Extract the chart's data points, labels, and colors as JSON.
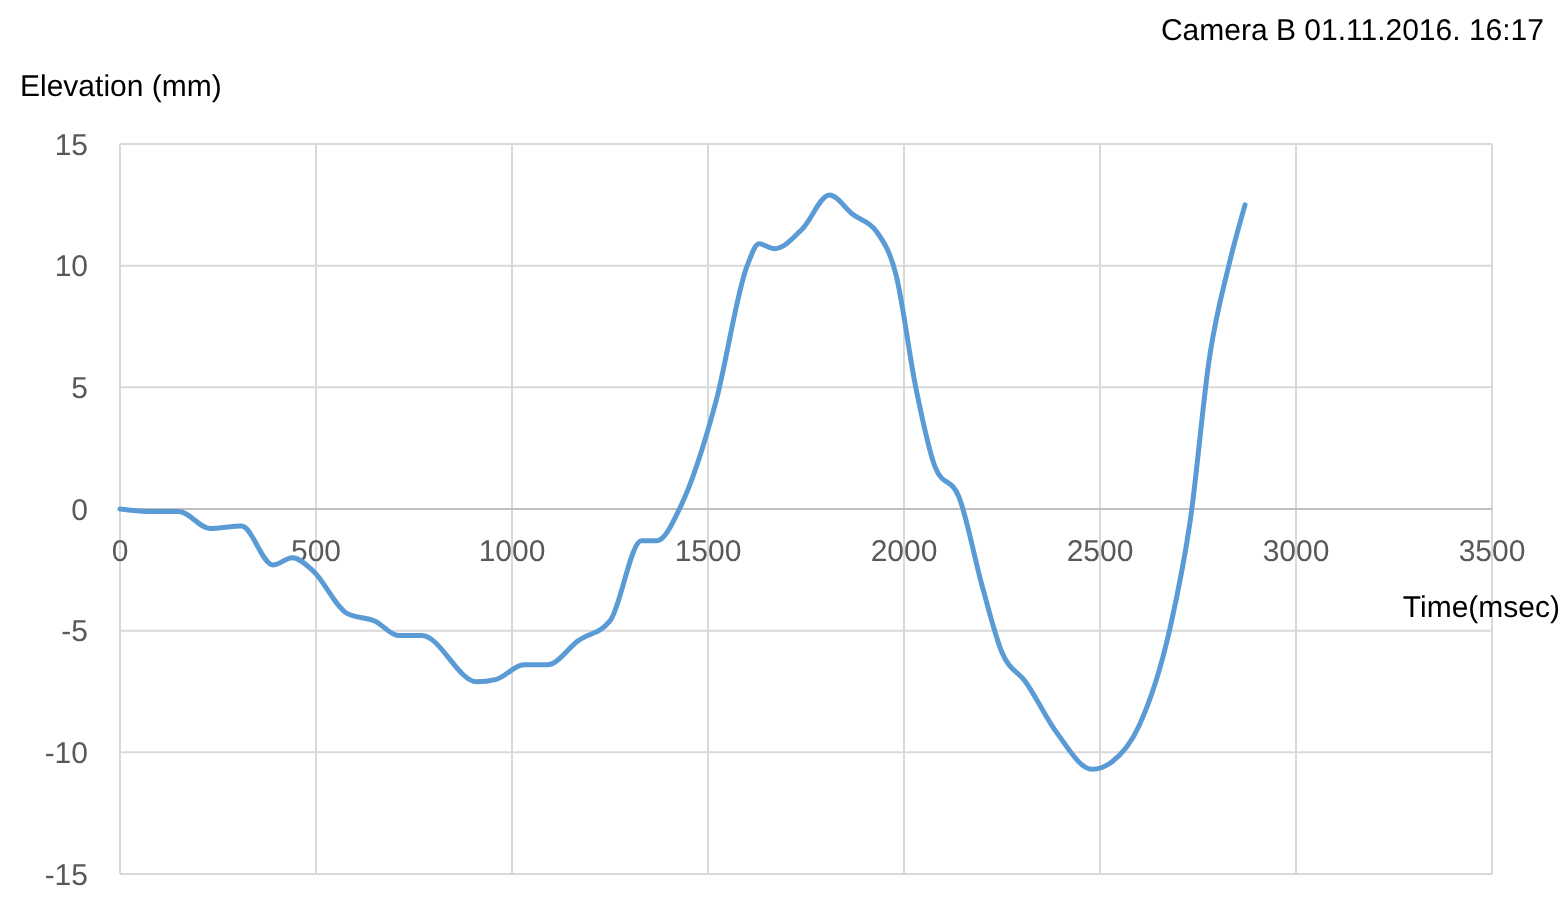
{
  "chart_data": {
    "type": "line",
    "title": "Camera B 01.11.2016. 16:17",
    "xlabel": "Time(msec)",
    "ylabel": "Elevation (mm)",
    "xlim": [
      0,
      3500
    ],
    "xticks": [
      0,
      500,
      1000,
      1500,
      2000,
      2500,
      3000,
      3500
    ],
    "ylim": [
      -15,
      15
    ],
    "yticks": [
      -15,
      -10,
      -5,
      0,
      5,
      10,
      15
    ],
    "grid": true,
    "marker": "none",
    "line_style": "solid",
    "series": [
      {
        "color": "#5b9bd5",
        "x": [
          0,
          70,
          150,
          230,
          310,
          390,
          440,
          490,
          580,
          650,
          710,
          770,
          910,
          960,
          1030,
          1090,
          1170,
          1250,
          1330,
          1370,
          1430,
          1520,
          1600,
          1630,
          1670,
          1740,
          1810,
          1870,
          1930,
          1980,
          2030,
          2080,
          2140,
          2200,
          2250,
          2310,
          2390,
          2480,
          2530,
          2600,
          2680,
          2730,
          2780,
          2830,
          2870
        ],
        "values": [
          0,
          -0.1,
          -0.1,
          -0.8,
          -0.7,
          -2.3,
          -2,
          -2.5,
          -4.3,
          -4.6,
          -5.2,
          -5.2,
          -7.1,
          -7,
          -6.4,
          -6.4,
          -5.4,
          -4.6,
          -1.3,
          -1.3,
          0.1,
          4.4,
          10,
          10.9,
          10.7,
          11.5,
          12.9,
          12.1,
          11.4,
          9.6,
          5,
          1.7,
          0.5,
          -3.2,
          -5.9,
          -7.1,
          -9.2,
          -10.7,
          -10.4,
          -8.9,
          -4.8,
          -0.5,
          6.3,
          10.1,
          12.5
        ]
      }
    ]
  }
}
